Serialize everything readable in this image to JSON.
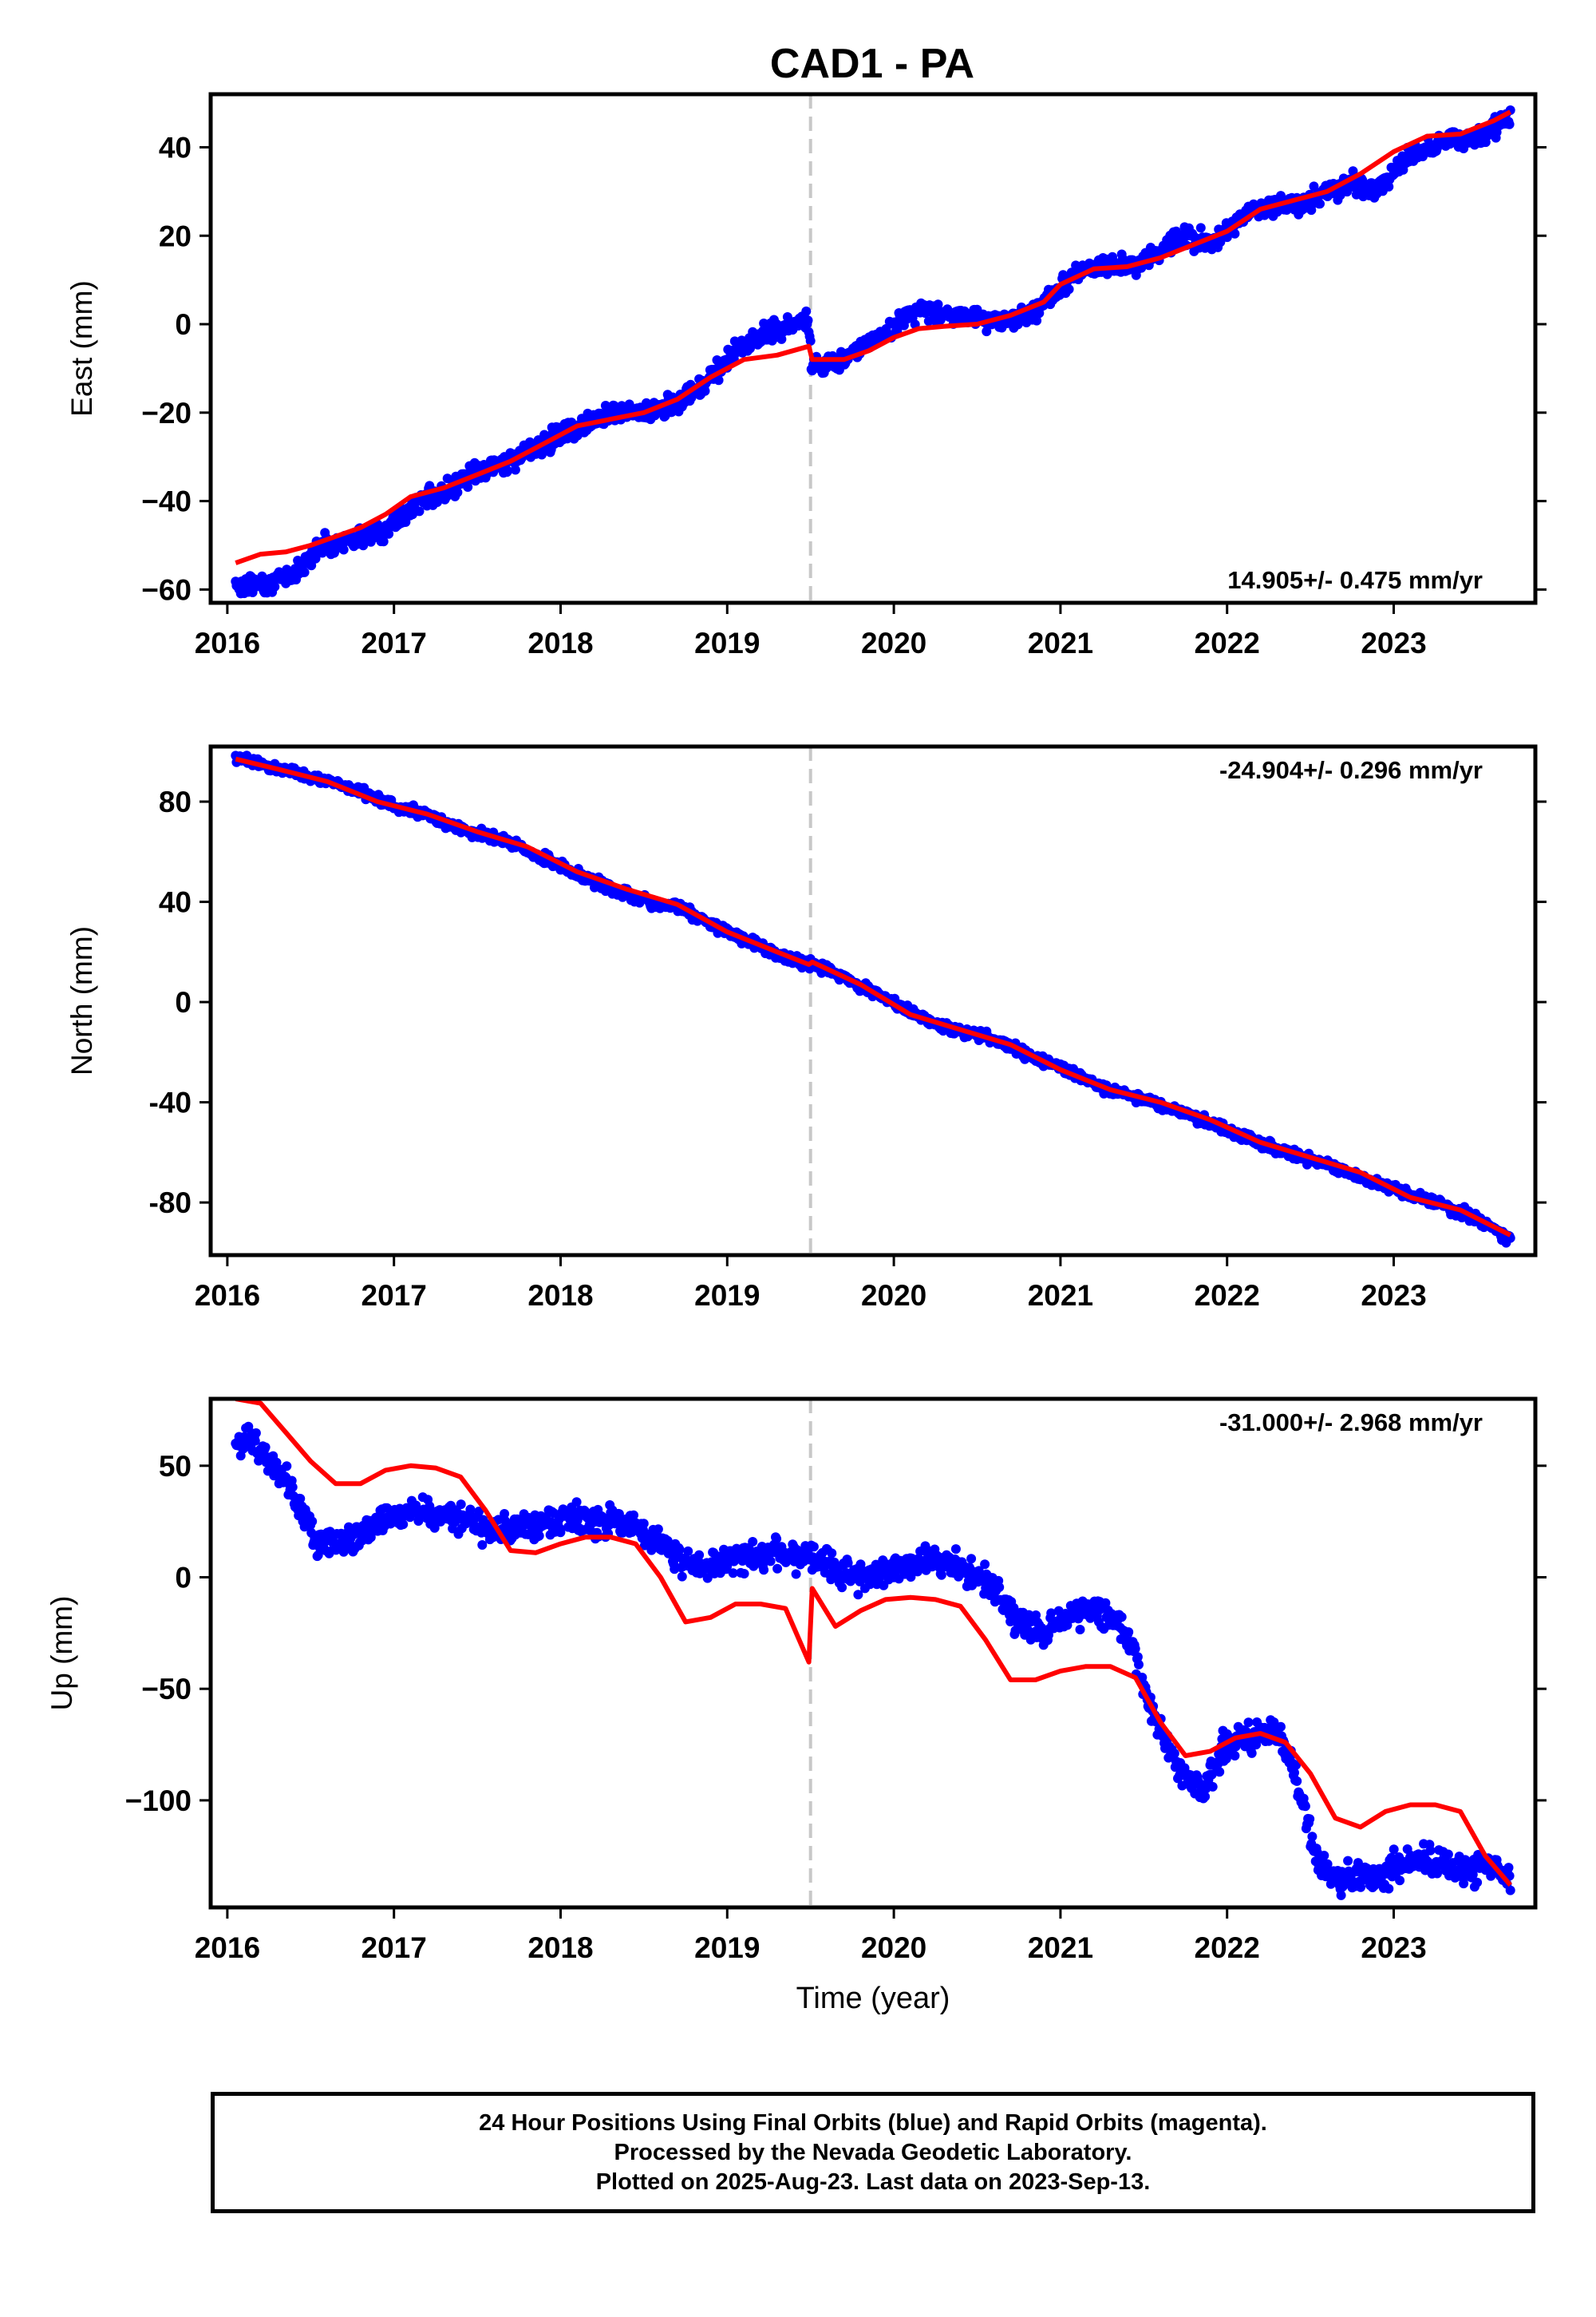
{
  "title": "CAD1 - PA",
  "colors": {
    "data": "#0000ff",
    "model": "#ff0000",
    "break": "#c8c8c8",
    "frame": "#000000"
  },
  "footer": {
    "line1": "24 Hour Positions Using Final Orbits (blue) and Rapid Orbits (magenta).",
    "line2": "Processed by the Nevada Geodetic Laboratory.",
    "line3": "Plotted on 2025-Aug-23. Last data on 2023-Sep-13."
  },
  "chart_data": [
    {
      "type": "scatter",
      "ylabel": "East (mm)",
      "xlim": [
        2015.9,
        2023.85
      ],
      "ylim": [
        -63,
        52
      ],
      "yticks": [
        -60,
        -40,
        -20,
        0,
        20,
        40
      ],
      "ytick_labels": [
        "−60",
        "−40",
        "−20",
        "0",
        "20",
        "40"
      ],
      "xticks": [
        2016,
        2017,
        2018,
        2019,
        2020,
        2021,
        2022,
        2023
      ],
      "xtick_labels": [
        "2016",
        "2017",
        "2018",
        "2019",
        "2020",
        "2021",
        "2022",
        "2023"
      ],
      "rate_text": "14.905+/- 0.475 mm/yr",
      "rate_position": "bottom-right",
      "break_x": 2019.5,
      "series": [
        {
          "kind": "points",
          "x": [
            2016.05,
            2016.15,
            2016.3,
            2016.45,
            2016.55,
            2016.7,
            2016.85,
            2017.0,
            2017.15,
            2017.3,
            2017.45,
            2017.6,
            2017.8,
            2018.0,
            2018.15,
            2018.3,
            2018.5,
            2018.7,
            2018.9,
            2019.05,
            2019.2,
            2019.35,
            2019.48,
            2019.52,
            2019.65,
            2019.8,
            2019.95,
            2020.1,
            2020.25,
            2020.4,
            2020.55,
            2020.7,
            2020.85,
            2021.0,
            2021.15,
            2021.3,
            2021.45,
            2021.6,
            2021.75,
            2021.9,
            2022.0,
            2022.15,
            2022.3,
            2022.45,
            2022.6,
            2022.75,
            2022.9,
            2023.05,
            2023.2,
            2023.35,
            2023.5,
            2023.7
          ],
          "y": [
            -59,
            -59,
            -58,
            -55,
            -50,
            -49,
            -48,
            -45,
            -40,
            -38,
            -35,
            -32,
            -29,
            -25,
            -22,
            -20,
            -20,
            -18,
            -12,
            -6,
            -3,
            -1,
            1,
            -9,
            -9,
            -5,
            -2,
            3,
            3,
            2,
            1,
            1,
            3,
            8,
            13,
            13,
            13,
            17,
            20,
            18,
            21,
            26,
            27,
            27,
            30,
            32,
            30,
            37,
            40,
            42,
            42,
            47
          ]
        },
        {
          "kind": "line",
          "x": [
            2016.05,
            2016.2,
            2016.35,
            2016.5,
            2016.65,
            2016.8,
            2016.95,
            2017.1,
            2017.3,
            2017.5,
            2017.7,
            2017.9,
            2018.1,
            2018.3,
            2018.5,
            2018.7,
            2018.9,
            2019.1,
            2019.3,
            2019.49,
            2019.51,
            2019.7,
            2019.85,
            2020.0,
            2020.15,
            2020.3,
            2020.5,
            2020.7,
            2020.9,
            2021.0,
            2021.2,
            2021.4,
            2021.6,
            2021.8,
            2022.0,
            2022.2,
            2022.4,
            2022.6,
            2022.8,
            2023.0,
            2023.2,
            2023.4,
            2023.6,
            2023.7
          ],
          "y": [
            -54,
            -52,
            -51.5,
            -50,
            -48,
            -46,
            -43,
            -39,
            -37,
            -34,
            -31,
            -27,
            -23,
            -21.5,
            -20,
            -17,
            -12,
            -8,
            -7,
            -5,
            -8,
            -8,
            -6,
            -3,
            -1,
            -0.5,
            0,
            2,
            5,
            9,
            12.5,
            13,
            15,
            18,
            21,
            26,
            28,
            30,
            34,
            39,
            42.5,
            43,
            46,
            48
          ]
        }
      ]
    },
    {
      "type": "scatter",
      "ylabel": "North (mm)",
      "xlim": [
        2015.9,
        2023.85
      ],
      "ylim": [
        -101,
        102
      ],
      "yticks": [
        -80,
        -40,
        0,
        40,
        80
      ],
      "ytick_labels": [
        "-80",
        "-40",
        "0",
        "40",
        "80"
      ],
      "xticks": [
        2016,
        2017,
        2018,
        2019,
        2020,
        2021,
        2022,
        2023
      ],
      "xtick_labels": [
        "2016",
        "2017",
        "2018",
        "2019",
        "2020",
        "2021",
        "2022",
        "2023"
      ],
      "rate_text": "-24.904+/- 0.296 mm/yr",
      "rate_position": "top-right",
      "break_x": 2019.5,
      "series": [
        {
          "kind": "points",
          "x": [
            2016.05,
            2016.15,
            2016.3,
            2016.45,
            2016.6,
            2016.75,
            2016.9,
            2017.05,
            2017.2,
            2017.35,
            2017.5,
            2017.65,
            2017.8,
            2017.95,
            2018.1,
            2018.25,
            2018.4,
            2018.55,
            2018.7,
            2018.85,
            2019.0,
            2019.15,
            2019.3,
            2019.45,
            2019.6,
            2019.75,
            2019.9,
            2020.05,
            2020.2,
            2020.35,
            2020.5,
            2020.65,
            2020.8,
            2020.95,
            2021.1,
            2021.25,
            2021.4,
            2021.55,
            2021.7,
            2021.85,
            2022.0,
            2022.15,
            2022.3,
            2022.45,
            2022.6,
            2022.75,
            2022.9,
            2023.05,
            2023.2,
            2023.35,
            2023.5,
            2023.7
          ],
          "y": [
            98,
            96,
            93,
            91,
            88,
            85,
            81,
            77,
            75,
            70,
            67,
            65,
            60,
            56,
            51,
            47,
            43,
            40,
            38,
            33,
            28,
            24,
            19,
            16,
            13,
            8,
            3,
            -2,
            -7,
            -11,
            -13,
            -16,
            -21,
            -25,
            -29,
            -34,
            -37,
            -40,
            -43,
            -47,
            -51,
            -55,
            -59,
            -62,
            -65,
            -69,
            -73,
            -76,
            -79,
            -83,
            -86,
            -95
          ]
        },
        {
          "kind": "line",
          "x": [
            2016.05,
            2016.3,
            2016.6,
            2016.9,
            2017.2,
            2017.5,
            2017.8,
            2018.1,
            2018.4,
            2018.7,
            2019.0,
            2019.3,
            2019.49,
            2019.51,
            2019.8,
            2020.1,
            2020.4,
            2020.7,
            2021.0,
            2021.3,
            2021.6,
            2021.9,
            2022.2,
            2022.5,
            2022.8,
            2023.1,
            2023.4,
            2023.7
          ],
          "y": [
            97,
            93,
            88,
            80,
            75,
            68,
            62,
            52,
            45,
            39,
            28,
            20,
            15,
            16,
            7,
            -5,
            -11,
            -17,
            -27,
            -35,
            -40,
            -47,
            -56,
            -62,
            -68,
            -78,
            -83,
            -93
          ]
        }
      ]
    },
    {
      "type": "scatter",
      "xlabel": "Time (year)",
      "ylabel": "Up (mm)",
      "xlim": [
        2015.9,
        2023.85
      ],
      "ylim": [
        -148,
        80
      ],
      "yticks": [
        -100,
        -50,
        0,
        50
      ],
      "ytick_labels": [
        "−100",
        "−50",
        "0",
        "50"
      ],
      "xticks": [
        2016,
        2017,
        2018,
        2019,
        2020,
        2021,
        2022,
        2023
      ],
      "xtick_labels": [
        "2016",
        "2017",
        "2018",
        "2019",
        "2020",
        "2021",
        "2022",
        "2023"
      ],
      "rate_text": "-31.000+/- 2.968 mm/yr",
      "rate_position": "top-right",
      "break_x": 2019.5,
      "series": [
        {
          "kind": "points",
          "x": [
            2016.05,
            2016.15,
            2016.3,
            2016.45,
            2016.55,
            2016.7,
            2016.85,
            2017.0,
            2017.15,
            2017.3,
            2017.45,
            2017.6,
            2017.8,
            2018.0,
            2018.2,
            2018.4,
            2018.55,
            2018.7,
            2018.85,
            2019.0,
            2019.15,
            2019.3,
            2019.45,
            2019.6,
            2019.75,
            2019.9,
            2020.05,
            2020.2,
            2020.35,
            2020.5,
            2020.6,
            2020.75,
            2020.9,
            2021.0,
            2021.15,
            2021.3,
            2021.45,
            2021.55,
            2021.7,
            2021.85,
            2022.0,
            2022.15,
            2022.3,
            2022.4,
            2022.55,
            2022.7,
            2022.85,
            2023.0,
            2023.15,
            2023.3,
            2023.45,
            2023.55,
            2023.7
          ],
          "y": [
            60,
            62,
            48,
            30,
            15,
            15,
            22,
            28,
            30,
            28,
            25,
            20,
            22,
            25,
            25,
            25,
            18,
            8,
            5,
            8,
            10,
            12,
            8,
            5,
            0,
            2,
            5,
            8,
            5,
            0,
            -5,
            -20,
            -25,
            -20,
            -15,
            -15,
            -35,
            -60,
            -85,
            -95,
            -75,
            -72,
            -68,
            -85,
            -130,
            -135,
            -135,
            -130,
            -125,
            -130,
            -132,
            -128,
            -135
          ]
        },
        {
          "kind": "line",
          "x": [
            2016.05,
            2016.2,
            2016.35,
            2016.5,
            2016.65,
            2016.8,
            2016.95,
            2017.1,
            2017.25,
            2017.4,
            2017.55,
            2017.7,
            2017.85,
            2018.0,
            2018.15,
            2018.3,
            2018.45,
            2018.6,
            2018.75,
            2018.9,
            2019.05,
            2019.2,
            2019.35,
            2019.49,
            2019.51,
            2019.65,
            2019.8,
            2019.95,
            2020.1,
            2020.25,
            2020.4,
            2020.55,
            2020.7,
            2020.85,
            2021.0,
            2021.15,
            2021.3,
            2021.45,
            2021.6,
            2021.75,
            2021.9,
            2022.05,
            2022.2,
            2022.35,
            2022.5,
            2022.65,
            2022.8,
            2022.95,
            2023.1,
            2023.25,
            2023.4,
            2023.55,
            2023.7
          ],
          "y": [
            80,
            78,
            65,
            52,
            42,
            42,
            48,
            50,
            49,
            45,
            30,
            12,
            11,
            15,
            18,
            18,
            15,
            0,
            -20,
            -18,
            -12,
            -12,
            -14,
            -38,
            -5,
            -22,
            -15,
            -10,
            -9,
            -10,
            -13,
            -28,
            -46,
            -46,
            -42,
            -40,
            -40,
            -45,
            -65,
            -80,
            -78,
            -72,
            -70,
            -74,
            -88,
            -108,
            -112,
            -105,
            -102,
            -102,
            -105,
            -125,
            -138
          ]
        }
      ]
    }
  ]
}
